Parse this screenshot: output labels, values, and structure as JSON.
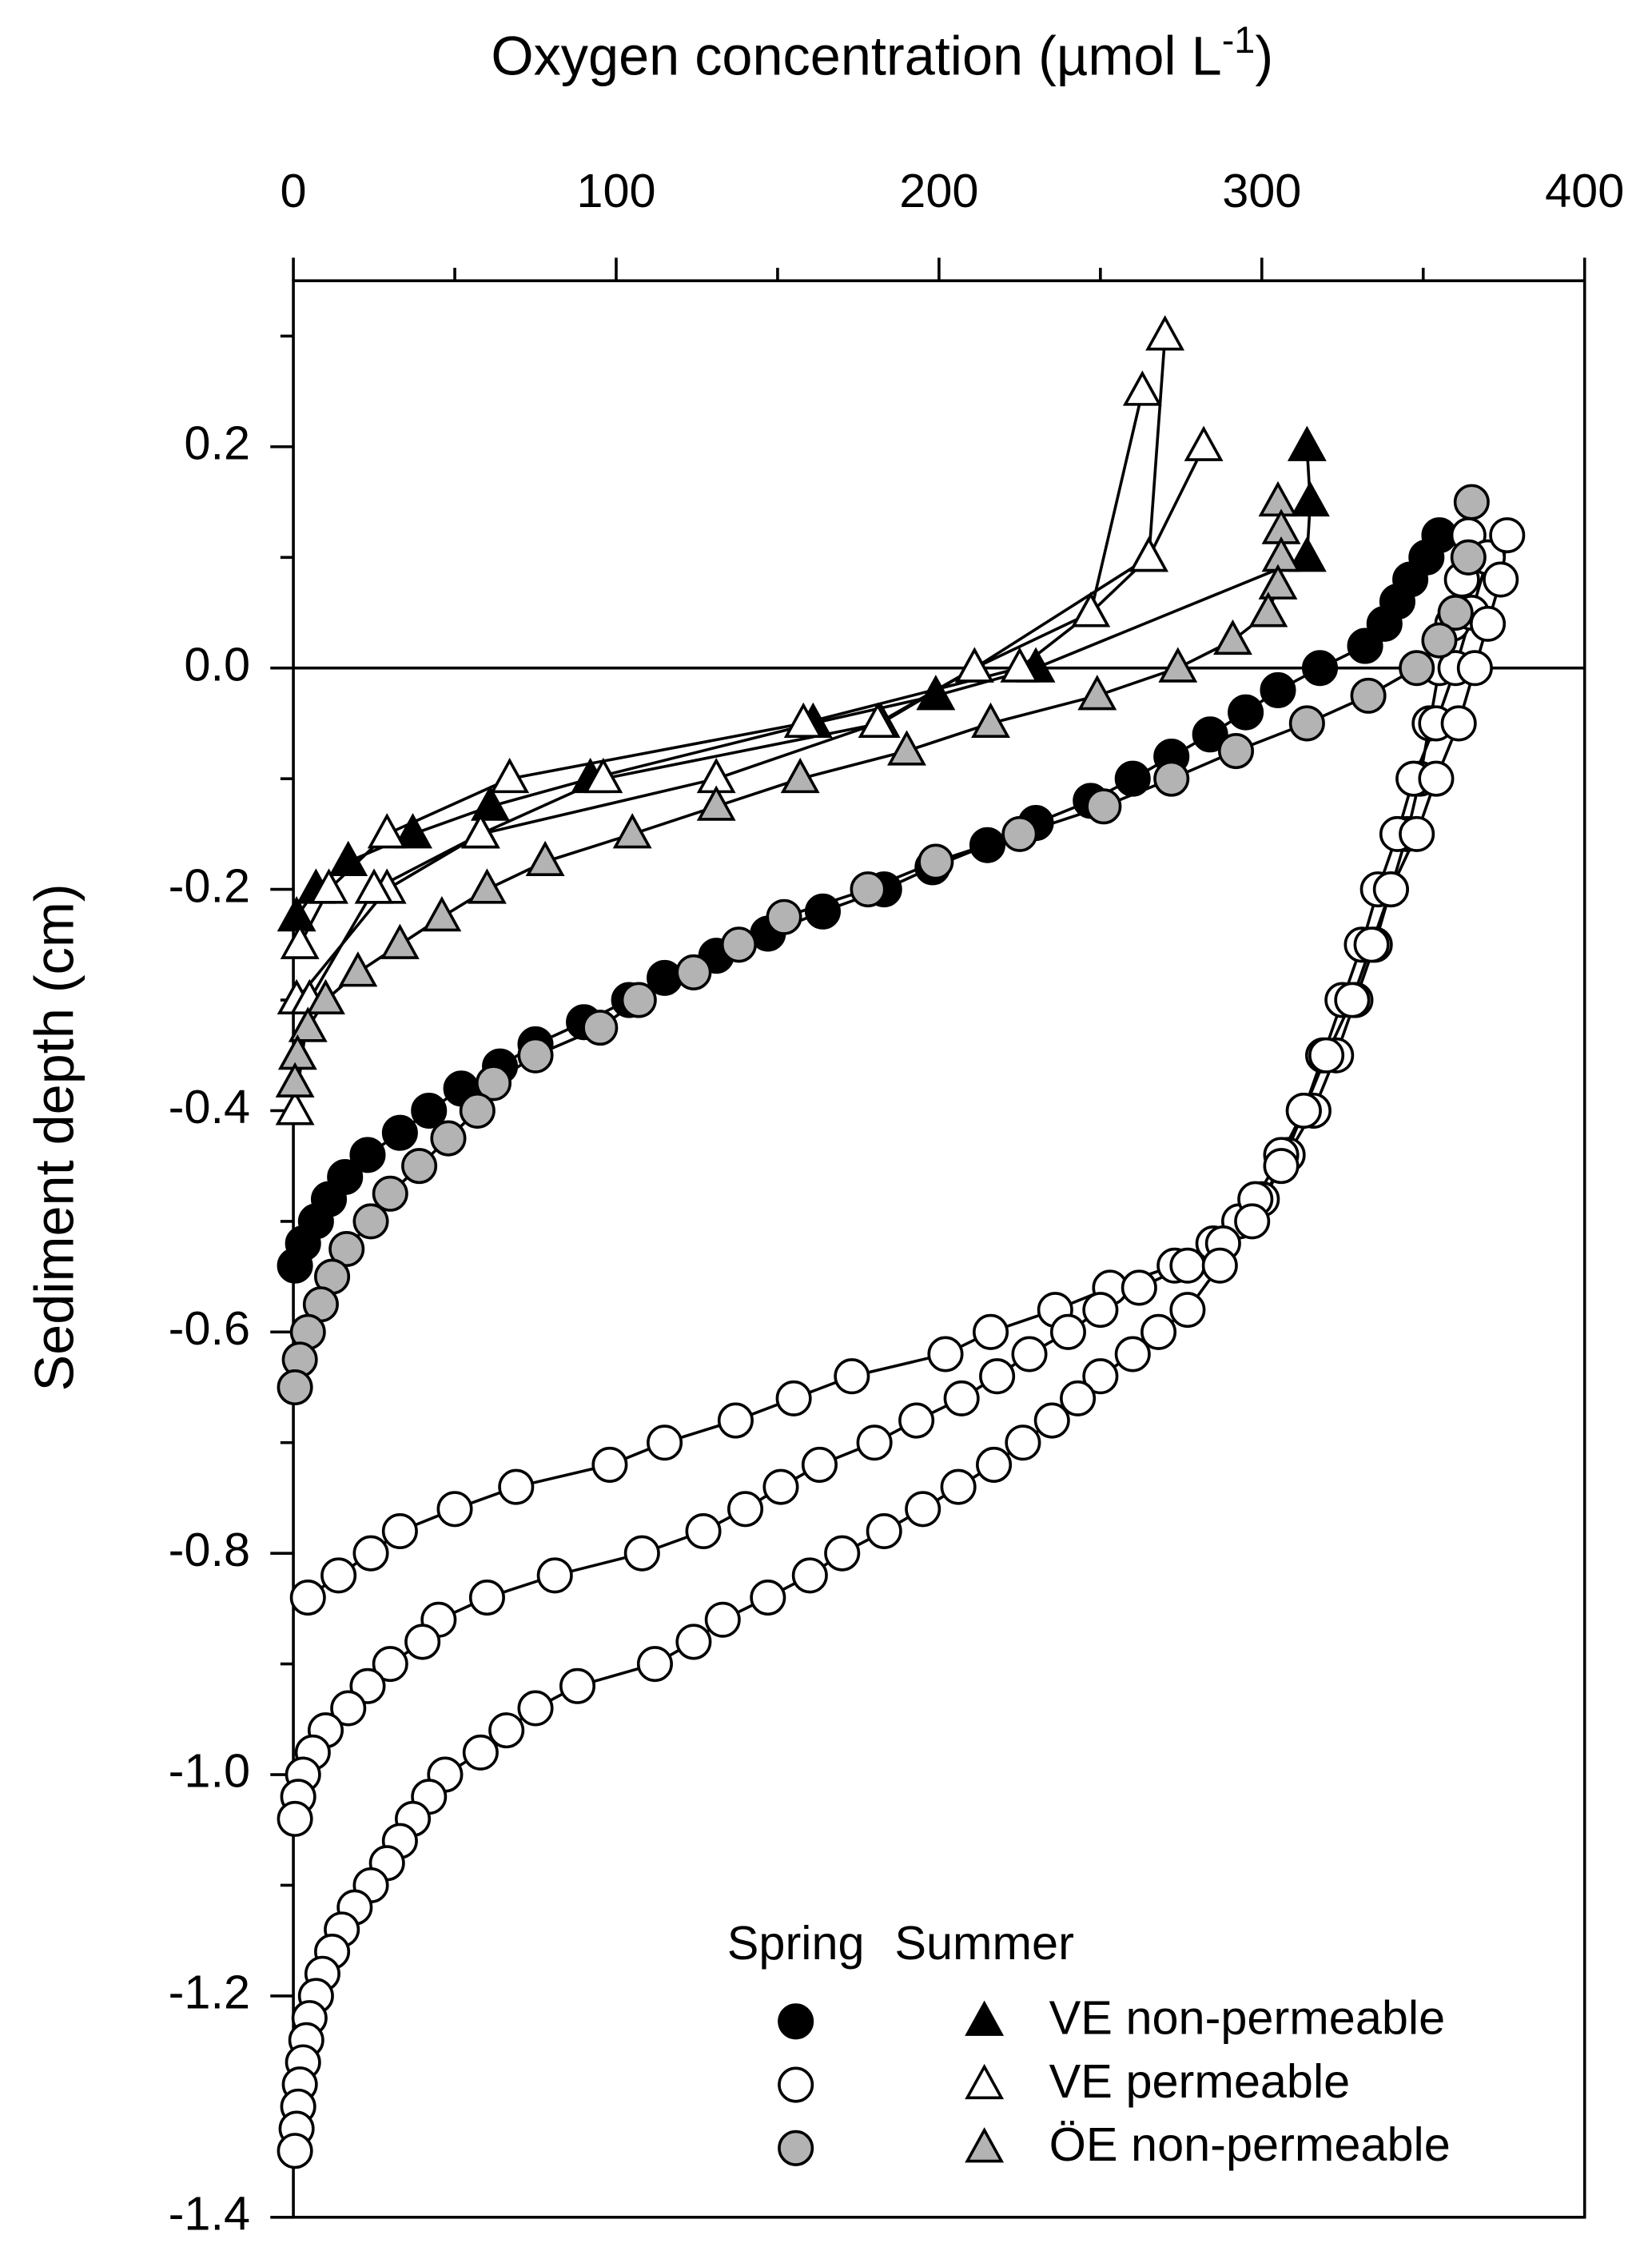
{
  "chart_data": {
    "type": "scatter",
    "xlabel": {
      "text": "Oxygen concentration (µmol L",
      "sup": "-1",
      "end": ")"
    },
    "ylabel": "Sediment depth (cm)",
    "xlim": [
      0,
      400
    ],
    "xticks": [
      0,
      100,
      200,
      300,
      400
    ],
    "xminorticks": [
      50,
      150,
      250,
      350
    ],
    "ylim": [
      -1.4,
      0.35
    ],
    "yticks": [
      -1.4,
      -1.2,
      {
        "value": -1,
        "label": "-1.0"
      },
      -0.8,
      -0.6,
      -0.4,
      -0.2,
      {
        "value": 0,
        "label": "0.0"
      },
      0.2
    ],
    "yminorticks": [
      -1.3,
      -1.1,
      -0.9,
      -0.7,
      -0.5,
      -0.3,
      -0.1,
      0.1,
      0.3
    ],
    "reference_line": 0,
    "x_axis_position": "top",
    "legend": {
      "columns": [
        "Spring",
        "Summer"
      ]
    },
    "series": [
      {
        "name": "VE non-permeable",
        "season": "Spring",
        "marker": "circle",
        "color": "#000000",
        "x": [
          355,
          351,
          346,
          342,
          338,
          332,
          318,
          305,
          295,
          284,
          272,
          260,
          247,
          230,
          215,
          198,
          183,
          164,
          147,
          131,
          115,
          104,
          90,
          75,
          64,
          52,
          42,
          33,
          23,
          16,
          11,
          7,
          3,
          0.5
        ],
        "y": [
          0.12,
          0.1,
          0.08,
          0.06,
          0.04,
          0.02,
          0,
          -0.02,
          -0.04,
          -0.06,
          -0.08,
          -0.1,
          -0.12,
          -0.14,
          -0.16,
          -0.18,
          -0.2,
          -0.22,
          -0.24,
          -0.26,
          -0.28,
          -0.3,
          -0.32,
          -0.34,
          -0.36,
          -0.38,
          -0.4,
          -0.42,
          -0.44,
          -0.46,
          -0.48,
          -0.5,
          -0.52,
          -0.54
        ]
      },
      {
        "name": "VE permeable",
        "season": "Spring",
        "marker": "circle",
        "color": "#ffffff",
        "x": [
          364,
          362,
          359,
          355,
          352,
          349,
          345,
          340,
          335,
          329,
          323,
          316,
          308,
          300,
          293,
          285,
          273,
          253,
          236,
          216,
          202,
          173,
          155,
          137,
          115,
          98,
          69,
          50,
          33,
          24,
          14,
          4.5
        ],
        "y": [
          0.12,
          0.08,
          0.04,
          0,
          -0.05,
          -0.1,
          -0.15,
          -0.2,
          -0.25,
          -0.3,
          -0.35,
          -0.4,
          -0.44,
          -0.48,
          -0.5,
          -0.52,
          -0.54,
          -0.56,
          -0.58,
          -0.6,
          -0.62,
          -0.64,
          -0.66,
          -0.68,
          -0.7,
          -0.72,
          -0.74,
          -0.76,
          -0.78,
          -0.8,
          -0.82,
          -0.84
        ]
      },
      {
        "name": "VE permeable",
        "season": "Spring",
        "marker": "circle",
        "color": "#ffffff",
        "x": [
          370,
          365,
          360,
          354,
          347,
          342,
          336,
          331,
          325,
          319,
          313,
          306,
          298,
          288,
          277,
          262,
          250,
          240,
          228,
          218,
          207,
          193,
          180,
          163,
          151,
          140,
          127,
          108,
          81,
          60,
          45,
          40,
          30,
          23,
          17,
          10,
          6,
          3,
          1.5,
          0.5
        ],
        "y": [
          0.1,
          0.05,
          0,
          -0.05,
          -0.1,
          -0.15,
          -0.2,
          -0.25,
          -0.3,
          -0.35,
          -0.4,
          -0.44,
          -0.48,
          -0.52,
          -0.54,
          -0.56,
          -0.58,
          -0.6,
          -0.62,
          -0.64,
          -0.66,
          -0.68,
          -0.7,
          -0.72,
          -0.74,
          -0.76,
          -0.78,
          -0.8,
          -0.82,
          -0.84,
          -0.86,
          -0.88,
          -0.9,
          -0.92,
          -0.94,
          -0.96,
          -0.98,
          -1,
          -1.02,
          -1.04
        ]
      },
      {
        "name": "VE permeable",
        "season": "Spring",
        "marker": "circle",
        "color": "#ffffff",
        "x": [
          376,
          374,
          370,
          366,
          361,
          354,
          348,
          340,
          334,
          328,
          320,
          313,
          306,
          297,
          287,
          277,
          268,
          260,
          250,
          243,
          235,
          226,
          217,
          206,
          195,
          183,
          170,
          160,
          147,
          133,
          124,
          112,
          88,
          75,
          66,
          58,
          47,
          42,
          37,
          33,
          29,
          24,
          19,
          15,
          12,
          9,
          7,
          5,
          4,
          3,
          2,
          1.5,
          1,
          0.5
        ],
        "y": [
          0.12,
          0.08,
          0.04,
          0,
          -0.05,
          -0.1,
          -0.15,
          -0.2,
          -0.25,
          -0.3,
          -0.35,
          -0.4,
          -0.45,
          -0.5,
          -0.54,
          -0.58,
          -0.6,
          -0.62,
          -0.64,
          -0.66,
          -0.68,
          -0.7,
          -0.72,
          -0.74,
          -0.76,
          -0.78,
          -0.8,
          -0.82,
          -0.84,
          -0.86,
          -0.88,
          -0.9,
          -0.92,
          -0.94,
          -0.96,
          -0.98,
          -1,
          -1.02,
          -1.04,
          -1.06,
          -1.08,
          -1.1,
          -1.12,
          -1.14,
          -1.16,
          -1.18,
          -1.2,
          -1.22,
          -1.24,
          -1.26,
          -1.28,
          -1.3,
          -1.32,
          -1.34
        ]
      },
      {
        "name": "ÖE non-permeable",
        "season": "Spring",
        "marker": "circle",
        "color": "#b3b3b3",
        "x": [
          365,
          364,
          360,
          355,
          348,
          333,
          314,
          292,
          272,
          251,
          225,
          199,
          178,
          152,
          138,
          124,
          107,
          95,
          75,
          62,
          57,
          48,
          39,
          30,
          24,
          16.5,
          12,
          8.5,
          4.5,
          2,
          0.5
        ],
        "y": [
          0.15,
          0.1,
          0.05,
          0.025,
          0,
          -0.025,
          -0.05,
          -0.075,
          -0.1,
          -0.125,
          -0.15,
          -0.175,
          -0.2,
          -0.225,
          -0.25,
          -0.275,
          -0.3,
          -0.325,
          -0.35,
          -0.375,
          -0.4,
          -0.425,
          -0.45,
          -0.475,
          -0.5,
          -0.525,
          -0.55,
          -0.575,
          -0.6,
          -0.625,
          -0.65
        ]
      },
      {
        "name": "VE non-permeable",
        "season": "Summer",
        "marker": "triangle",
        "color": "#000000",
        "x": [
          314,
          315,
          314,
          230,
          199,
          161,
          92,
          61,
          37,
          17,
          7,
          1
        ],
        "y": [
          0.2,
          0.15,
          0.1,
          0,
          -0.025,
          -0.05,
          -0.1,
          -0.125,
          -0.15,
          -0.175,
          -0.2,
          -0.225
        ]
      },
      {
        "name": "VE permeable",
        "season": "Summer",
        "marker": "triangle",
        "color": "#ffffff",
        "x": [
          270,
          265,
          247,
          211,
          182,
          96,
          58,
          29,
          1
        ],
        "y": [
          0.3,
          0.1,
          0.05,
          0,
          -0.05,
          -0.1,
          -0.15,
          -0.2,
          -0.3
        ]
      },
      {
        "name": "VE permeable",
        "season": "Summer",
        "marker": "triangle",
        "color": "#ffffff",
        "x": [
          263,
          247,
          225,
          158,
          67,
          29,
          11,
          2
        ],
        "y": [
          0.25,
          0.05,
          0,
          -0.05,
          -0.1,
          -0.15,
          -0.2,
          -0.25
        ]
      },
      {
        "name": "VE permeable",
        "season": "Summer",
        "marker": "triangle",
        "color": "#ffffff",
        "x": [
          282,
          265,
          211,
          181,
          131,
          58,
          25,
          5,
          0.5
        ],
        "y": [
          0.2,
          0.1,
          0,
          -0.05,
          -0.1,
          -0.15,
          -0.2,
          -0.3,
          -0.4
        ]
      },
      {
        "name": "ÖE non-permeable",
        "season": "Summer",
        "marker": "triangle",
        "color": "#b3b3b3",
        "x": [
          305,
          306,
          306,
          305,
          302,
          291,
          274,
          249,
          216,
          190,
          157,
          131,
          105,
          78,
          60,
          46,
          33,
          20,
          10,
          4.5,
          1.3,
          0.5
        ],
        "y": [
          0.15,
          0.125,
          0.1,
          0.075,
          0.05,
          0.025,
          0,
          -0.025,
          -0.05,
          -0.075,
          -0.1,
          -0.125,
          -0.15,
          -0.175,
          -0.2,
          -0.225,
          -0.25,
          -0.275,
          -0.3,
          -0.325,
          -0.35,
          -0.375
        ]
      }
    ]
  }
}
